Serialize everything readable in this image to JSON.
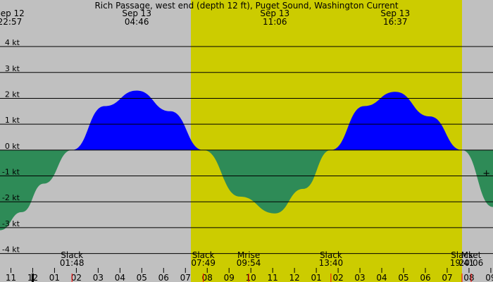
{
  "chart_data": {
    "type": "area",
    "title": "Rich Passage, west end (depth 12 ft), Puget Sound, Washington Current",
    "ylim": [
      -5.1,
      5.8
    ],
    "xlim": [
      -1.5,
      21.1
    ],
    "yticks": [
      4,
      3,
      2,
      1,
      0,
      -1,
      -2,
      -3,
      -4
    ],
    "ytick_labels": [
      "4 kt",
      "3 kt",
      "2 kt",
      "1 kt",
      "0 kt",
      "-1 kt",
      "-2 kt",
      "-3 kt",
      "-4 kt"
    ],
    "grid": true,
    "daylight": [
      7.25,
      19.68
    ],
    "flood_color": "#0000ff",
    "ebb_color": "#2e8b57",
    "daylight_color": "#cccc00",
    "night_color": "#c0c0c0",
    "curve": [
      {
        "t": -1.5,
        "v": -3.1
      },
      {
        "t": -0.5,
        "v": -2.4
      },
      {
        "t": 0.5,
        "v": -1.3
      },
      {
        "t": 1.8,
        "v": 0.0
      },
      {
        "t": 3.3,
        "v": 1.7
      },
      {
        "t": 4.77,
        "v": 2.3
      },
      {
        "t": 6.3,
        "v": 1.5
      },
      {
        "t": 7.82,
        "v": 0.0
      },
      {
        "t": 9.5,
        "v": -1.8
      },
      {
        "t": 11.1,
        "v": -2.45
      },
      {
        "t": 12.4,
        "v": -1.5
      },
      {
        "t": 13.67,
        "v": 0.0
      },
      {
        "t": 15.2,
        "v": 1.7
      },
      {
        "t": 16.62,
        "v": 2.25
      },
      {
        "t": 18.2,
        "v": 1.3
      },
      {
        "t": 19.68,
        "v": 0.0
      },
      {
        "t": 21.1,
        "v": -2.2
      }
    ],
    "top_labels": [
      {
        "t": -1.05,
        "date": "Sep 12",
        "time": "22:57"
      },
      {
        "t": 4.77,
        "date": "Sep 13",
        "time": "04:46"
      },
      {
        "t": 11.1,
        "date": "Sep 13",
        "time": "11:06"
      },
      {
        "t": 16.62,
        "date": "Sep 13",
        "time": "16:37"
      }
    ],
    "events": [
      {
        "t": 1.8,
        "name": "Slack",
        "time": "01:48"
      },
      {
        "t": 7.82,
        "name": "Slack",
        "time": "07:49"
      },
      {
        "t": 9.9,
        "name": "Mrise",
        "time": "09:54"
      },
      {
        "t": 13.67,
        "name": "Slack",
        "time": "13:40"
      },
      {
        "t": 19.68,
        "name": "Slack",
        "time": "19:41"
      },
      {
        "t": 20.1,
        "name": "Mset",
        "time": "20:06"
      }
    ],
    "hour_labels": [
      "11",
      "12",
      "01",
      "02",
      "03",
      "04",
      "05",
      "06",
      "07",
      "08",
      "09",
      "10",
      "11",
      "12",
      "01",
      "02",
      "03",
      "04",
      "05",
      "06",
      "07",
      "08",
      "09"
    ],
    "hour_start": -1,
    "red_ticks": [
      1.8,
      7.82,
      9.9,
      13.67,
      19.68,
      20.1
    ],
    "midnight_tick": 0,
    "marker": {
      "t": 20.8,
      "v": -0.9,
      "symbol": "+"
    }
  }
}
